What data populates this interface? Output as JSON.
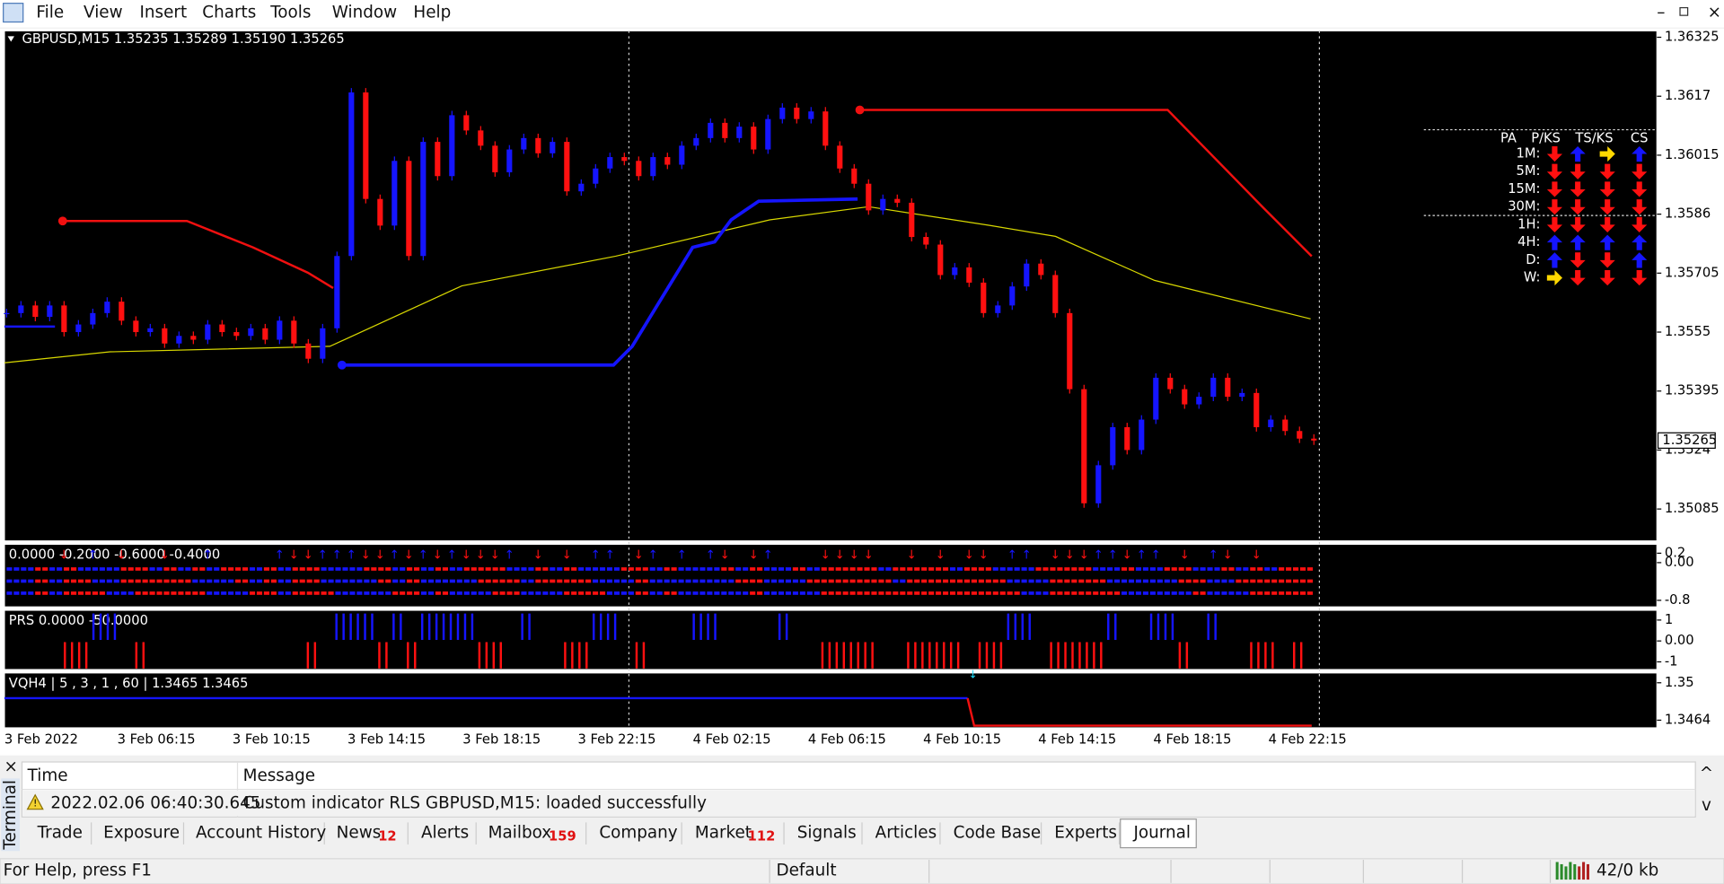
{
  "menu": [
    "File",
    "View",
    "Insert",
    "Charts",
    "Tools",
    "Window",
    "Help"
  ],
  "chart": {
    "header": "GBPUSD,M15  1.35235 1.35289 1.35190 1.35265",
    "ylim": [
      1.35001,
      1.36342
    ],
    "yticks": [
      1.36325,
      1.3617,
      1.36015,
      1.3586,
      1.35705,
      1.3555,
      1.35395,
      1.3524,
      1.35085
    ],
    "current_price": 1.35265,
    "time_labels": [
      "3 Feb 2022",
      "3 Feb 06:15",
      "3 Feb 10:15",
      "3 Feb 14:15",
      "3 Feb 18:15",
      "3 Feb 22:15",
      "4 Feb 02:15",
      "4 Feb 06:15",
      "4 Feb 10:15",
      "4 Feb 14:15",
      "4 Feb 18:15",
      "4 Feb 22:15"
    ],
    "closes": [
      1.356,
      1.3562,
      1.3559,
      1.3562,
      1.3555,
      1.3557,
      1.356,
      1.3563,
      1.3558,
      1.3555,
      1.3556,
      1.3552,
      1.3554,
      1.3553,
      1.3557,
      1.3555,
      1.3554,
      1.3556,
      1.3553,
      1.3558,
      1.3552,
      1.3548,
      1.3556,
      1.3575,
      1.3618,
      1.359,
      1.3583,
      1.36,
      1.3575,
      1.3605,
      1.3596,
      1.3612,
      1.3608,
      1.3604,
      1.3597,
      1.3603,
      1.3606,
      1.3602,
      1.3605,
      1.3592,
      1.3594,
      1.3598,
      1.3601,
      1.36,
      1.3596,
      1.3601,
      1.3599,
      1.3604,
      1.3606,
      1.361,
      1.3606,
      1.3609,
      1.3603,
      1.3611,
      1.3614,
      1.3611,
      1.3613,
      1.3604,
      1.3598,
      1.3594,
      1.3587,
      1.359,
      1.3589,
      1.358,
      1.3578,
      1.357,
      1.3572,
      1.3568,
      1.356,
      1.3562,
      1.3567,
      1.3573,
      1.357,
      1.356,
      1.354,
      1.351,
      1.352,
      1.353,
      1.3524,
      1.3532,
      1.3543,
      1.354,
      1.3536,
      1.3538,
      1.3543,
      1.3538,
      1.3539,
      1.353,
      1.3532,
      1.3529,
      1.3527,
      1.35265
    ],
    "indicators": [
      {
        "label": "0.0000 -0.2000 -0.6000 -0.4000",
        "ylim": [
          -0.94,
          0.39
        ],
        "yticks": [
          0.2,
          {
            "value": 0,
            "label": "0.00"
          },
          -0.8
        ]
      },
      {
        "label": "PRS 0.0000 -50.0000",
        "ylim": [
          -1.37,
          1.47
        ],
        "yticks": [
          1,
          {
            "value": 0,
            "label": "0.00"
          },
          -1
        ]
      },
      {
        "label": "VQH4 | 5 , 3 , 1 , 60 | 1.3465 1.3465",
        "ylim": [
          1.34566,
          1.35095
        ],
        "yticks": [
          1.35,
          1.3464
        ]
      }
    ]
  },
  "mtf_table": {
    "header": [
      "PA",
      "P/KS",
      "TS/KS",
      "CS"
    ],
    "rows": [
      "1M:",
      "5M:",
      "15M:",
      "30M:",
      "1H:",
      "4H:",
      "D:",
      "W:"
    ]
  },
  "terminal": {
    "side_label": "Terminal",
    "columns": [
      "Time",
      "Message"
    ],
    "rows": [
      [
        "2022.02.06 06:40:30.645",
        "Custom indicator RLS GBPUSD,M15: loaded successfully"
      ]
    ],
    "tabs": [
      {
        "name": "Trade"
      },
      {
        "name": "Exposure"
      },
      {
        "name": "Account History"
      },
      {
        "name": "News",
        "count": 12
      },
      {
        "name": "Alerts"
      },
      {
        "name": "Mailbox",
        "count": 159
      },
      {
        "name": "Company"
      },
      {
        "name": "Market",
        "count": 112
      },
      {
        "name": "Signals"
      },
      {
        "name": "Articles"
      },
      {
        "name": "Code Base"
      },
      {
        "name": "Experts"
      },
      {
        "name": "Journal"
      }
    ]
  },
  "status": {
    "help": "For Help, press F1",
    "profile": "Default",
    "traffic": "42/0 kb"
  }
}
